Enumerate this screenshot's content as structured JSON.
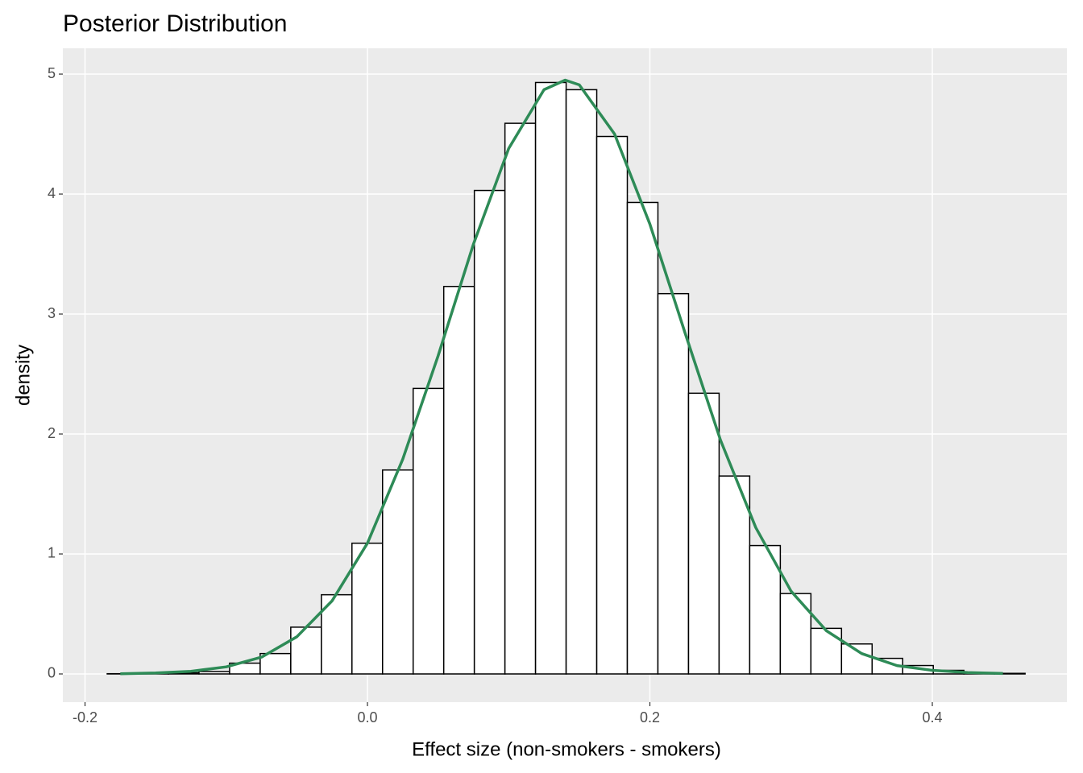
{
  "chart_data": {
    "type": "histogram",
    "title": "Posterior Distribution",
    "x_label": "Effect size (non-smokers - smokers)",
    "y_label": "density",
    "bins": [
      -0.1843,
      -0.16263,
      -0.14097,
      -0.1193,
      -0.09763,
      -0.07597,
      -0.0543,
      -0.03263,
      -0.01097,
      0.0107,
      0.03237,
      0.05403,
      0.0757,
      0.09737,
      0.11903,
      0.1407,
      0.16237,
      0.18403,
      0.2057,
      0.22737,
      0.24903,
      0.2707,
      0.29237,
      0.31403,
      0.3357,
      0.35737,
      0.37903,
      0.4007,
      0.42237,
      0.44403,
      0.4657
    ],
    "counts": [
      0.002,
      0.003,
      0.01,
      0.02,
      0.09,
      0.17,
      0.39,
      0.66,
      1.09,
      1.7,
      2.38,
      3.23,
      4.03,
      4.59,
      4.93,
      4.87,
      4.48,
      3.93,
      3.17,
      2.34,
      1.65,
      1.07,
      0.67,
      0.38,
      0.25,
      0.13,
      0.07,
      0.03,
      0.01,
      0.005
    ],
    "bar_fill": "#ffffff",
    "bar_stroke": "#000000",
    "density": {
      "color": "#2e8b57",
      "x": [
        -0.175,
        -0.15,
        -0.125,
        -0.1,
        -0.075,
        -0.05,
        -0.025,
        0,
        0.025,
        0.05,
        0.075,
        0.1,
        0.125,
        0.14,
        0.15,
        0.175,
        0.2,
        0.225,
        0.25,
        0.275,
        0.3,
        0.325,
        0.35,
        0.375,
        0.4,
        0.425,
        0.45
      ],
      "values": [
        0.002,
        0.008,
        0.022,
        0.059,
        0.14,
        0.31,
        0.61,
        1.09,
        1.79,
        2.65,
        3.58,
        4.38,
        4.87,
        4.95,
        4.91,
        4.5,
        3.75,
        2.84,
        1.95,
        1.22,
        0.69,
        0.36,
        0.17,
        0.07,
        0.03,
        0.012,
        0.004
      ]
    },
    "xlim": [
      -0.2157,
      0.4953
    ],
    "ylim": [
      -0.235,
      5.215
    ],
    "xticks": [
      -0.2,
      {
        "value": 0,
        "label": "0.0"
      },
      0.2,
      0.4
    ],
    "yticks": [
      0,
      1,
      2,
      3,
      4,
      5
    ],
    "grid": true
  }
}
